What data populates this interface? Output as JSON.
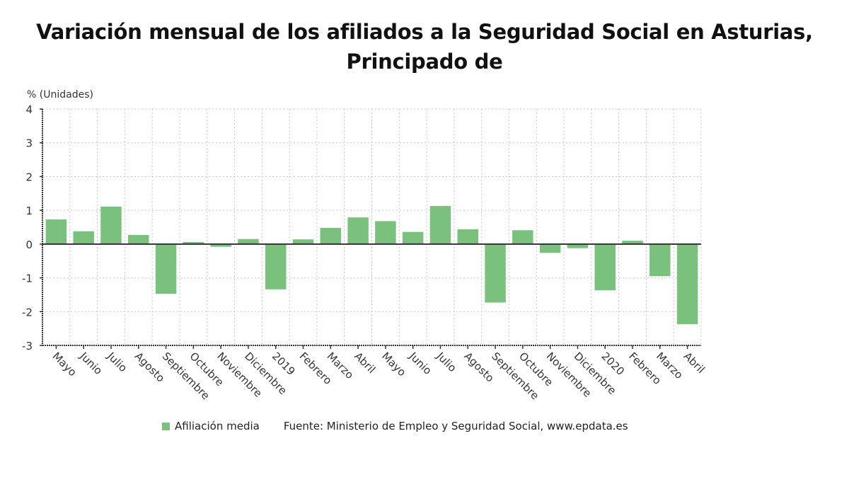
{
  "chart_data": {
    "type": "bar",
    "title": "Variación mensual de los afiliados a la Seguridad Social en Asturias, Principado de",
    "title_lines": [
      "Variación mensual de los afiliados a la Seguridad Social en Asturias,",
      "Principado de"
    ],
    "ylabel": "% (Unidades)",
    "xlabel": "",
    "ylim": [
      -3,
      4
    ],
    "yticks": [
      4,
      3,
      2,
      1,
      0,
      -1,
      -2,
      -3
    ],
    "grid": true,
    "categories": [
      "Mayo",
      "Junio",
      "Julio",
      "Agosto",
      "Septiembre",
      "Octubre",
      "Noviembre",
      "Diciembre",
      "2019",
      "Febrero",
      "Marzo",
      "Abril",
      "Mayo",
      "Junio",
      "Julio",
      "Agosto",
      "Septiembre",
      "Octubre",
      "Noviembre",
      "Diciembre",
      "2020",
      "Febrero",
      "Marzo",
      "Abril"
    ],
    "series": [
      {
        "name": "Afiliación media",
        "color": "#7bc17e",
        "values": [
          0.73,
          0.38,
          1.11,
          0.27,
          -1.47,
          0.06,
          -0.08,
          0.15,
          -1.34,
          0.14,
          0.48,
          0.79,
          0.68,
          0.36,
          1.13,
          0.44,
          -1.73,
          0.41,
          -0.26,
          -0.12,
          -1.37,
          0.1,
          -0.95,
          -2.37
        ]
      }
    ],
    "legend": {
      "placement": "bottom",
      "entries": [
        "Afiliación media"
      ]
    },
    "source": "Fuente: Ministerio de Empleo y Seguridad Social, www.epdata.es"
  }
}
